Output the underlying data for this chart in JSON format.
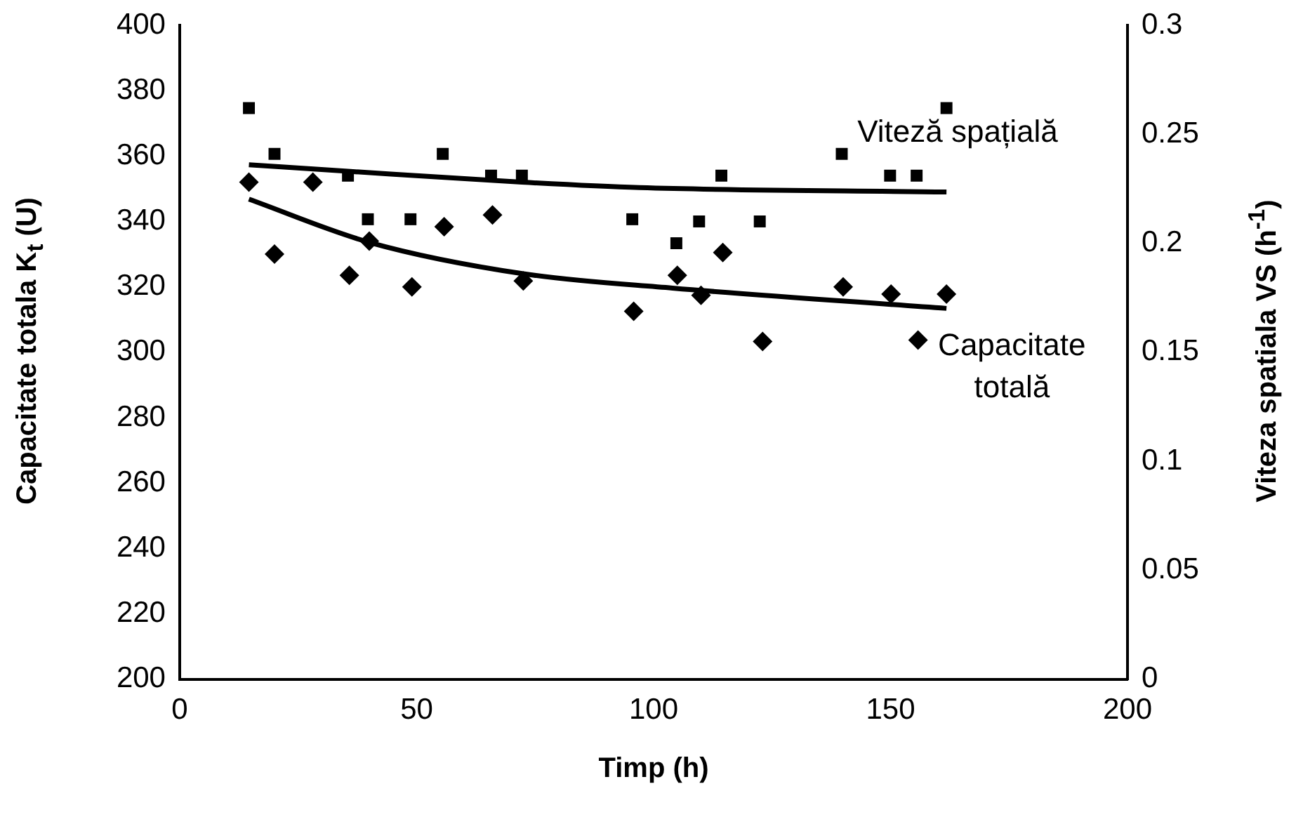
{
  "chart_data": {
    "type": "scatter",
    "xlabel": "Timp (h)",
    "ylabel": "Capacitate totala K$_{t}$ (U)",
    "y2label": "Viteza spatiala VS (h$^{-1}$)",
    "xlim": [
      0,
      200
    ],
    "xticks": [
      0,
      50,
      100,
      150,
      200
    ],
    "ylim": [
      200,
      400
    ],
    "yticks": [
      200,
      220,
      240,
      260,
      280,
      300,
      320,
      340,
      360,
      380,
      400
    ],
    "y2lim": [
      0,
      0.3
    ],
    "y2ticks": [
      0,
      0.05,
      0.1,
      0.15,
      0.2,
      0.25,
      0.3
    ],
    "grid": false,
    "legend": false,
    "series": [
      {
        "marker": "square",
        "color": "#000000",
        "axis": "y2",
        "x": [
          14.6,
          20,
          35.5,
          39.7,
          48.7,
          55.5,
          65.7,
          72.2,
          95.5,
          104.8,
          109.6,
          114.3,
          122.4,
          139.7,
          149.9,
          155.5,
          161.8
        ],
        "values": [
          0.262,
          0.241,
          0.231,
          0.211,
          0.211,
          0.241,
          0.231,
          0.231,
          0.211,
          0.2,
          0.21,
          0.231,
          0.21,
          0.241,
          0.231,
          0.231,
          0.262
        ]
      },
      {
        "marker": "diamond",
        "color": "#000000",
        "x": [
          14.6,
          20,
          28.1,
          35.8,
          40,
          49,
          55.8,
          66,
          72.5,
          95.8,
          105,
          110,
          114.6,
          123,
          140,
          150.1,
          155.8,
          161.8
        ],
        "values": [
          352,
          330,
          352,
          323.5,
          334,
          320,
          338.4,
          342,
          321.8,
          312.5,
          323.5,
          317.4,
          330.5,
          303.3,
          320,
          317.8,
          303.7,
          317.8
        ]
      },
      {
        "type": "line",
        "marker": "none",
        "color": "#000000",
        "axis": "y2",
        "x": [
          14.6,
          35.5,
          72.2,
          97,
          161.8
        ],
        "values": [
          0.236,
          0.233,
          0.228,
          0.2255,
          0.2235
        ]
      },
      {
        "type": "line",
        "marker": "none",
        "color": "#000000",
        "x": [
          14.6,
          40,
          72.5,
          104,
          161.8
        ],
        "values": [
          346.8,
          333.6,
          324,
          319.6,
          313.4
        ]
      }
    ],
    "annotations": [
      "Viteză spațială",
      "Capacitate totală"
    ]
  }
}
